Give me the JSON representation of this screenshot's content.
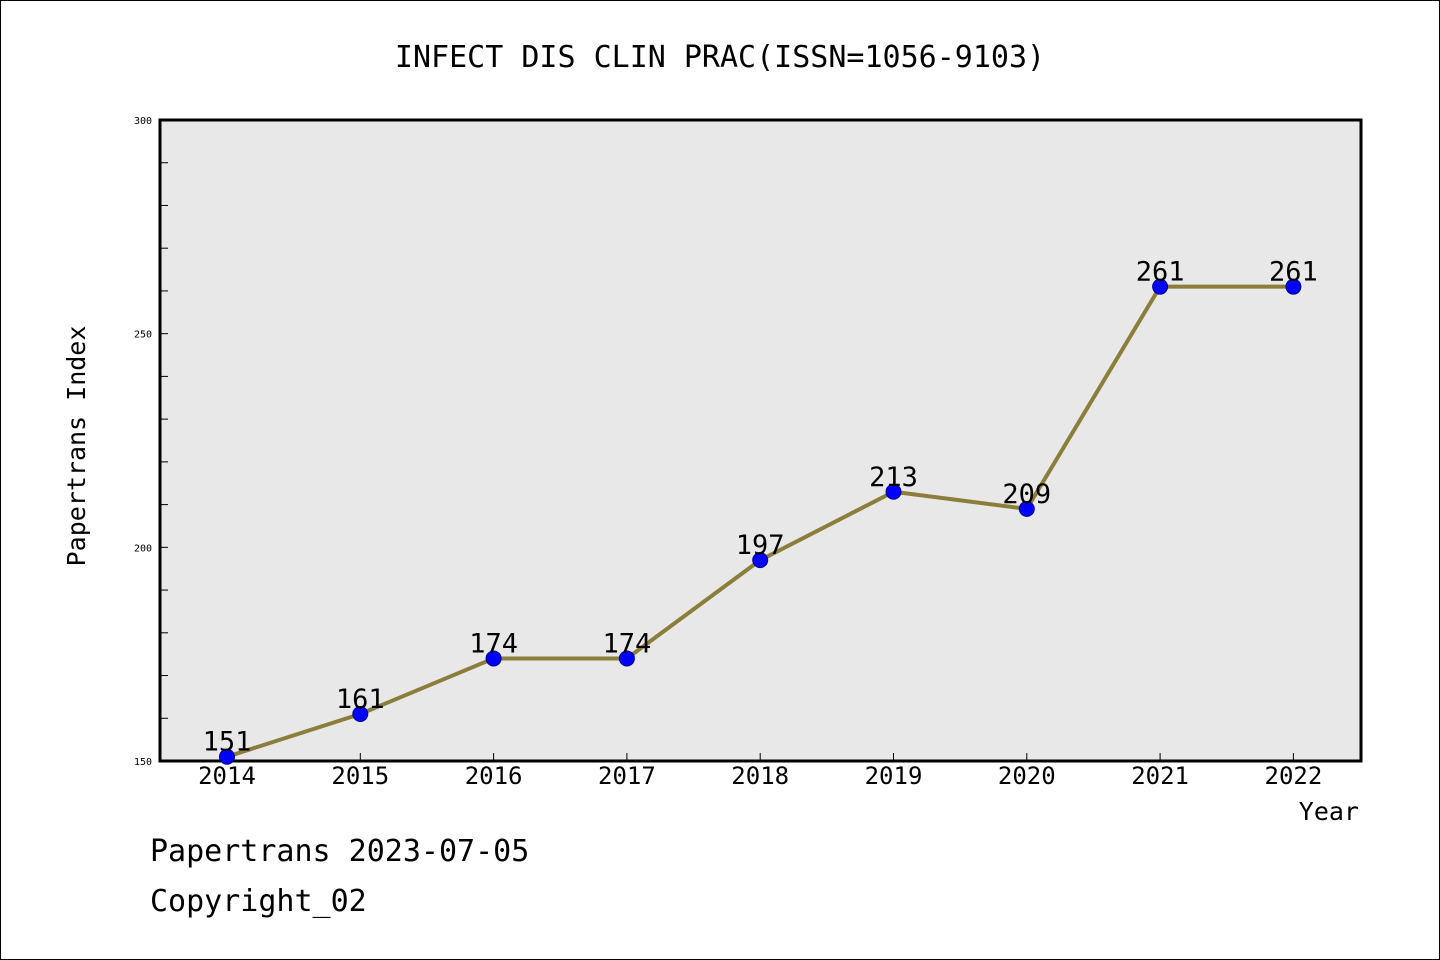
{
  "chart_data": {
    "type": "line",
    "title": "INFECT DIS CLIN PRAC(ISSN=1056-9103)",
    "xlabel": "Year",
    "ylabel": "Papertrans Index",
    "categories": [
      "2014",
      "2015",
      "2016",
      "2017",
      "2018",
      "2019",
      "2020",
      "2021",
      "2022"
    ],
    "values": [
      151,
      161,
      174,
      174,
      197,
      213,
      209,
      261,
      261
    ],
    "ylim": [
      150,
      300
    ],
    "yticks": [
      "150",
      "200",
      "250",
      "300"
    ],
    "grid": false,
    "legend": "none",
    "line_color": "#8b7d3a",
    "marker_color": "#0000ff",
    "plot_background": "#e8e8e8"
  },
  "footer": {
    "date_line": "Papertrans 2023-07-05",
    "copyright_line": "Copyright_02"
  }
}
